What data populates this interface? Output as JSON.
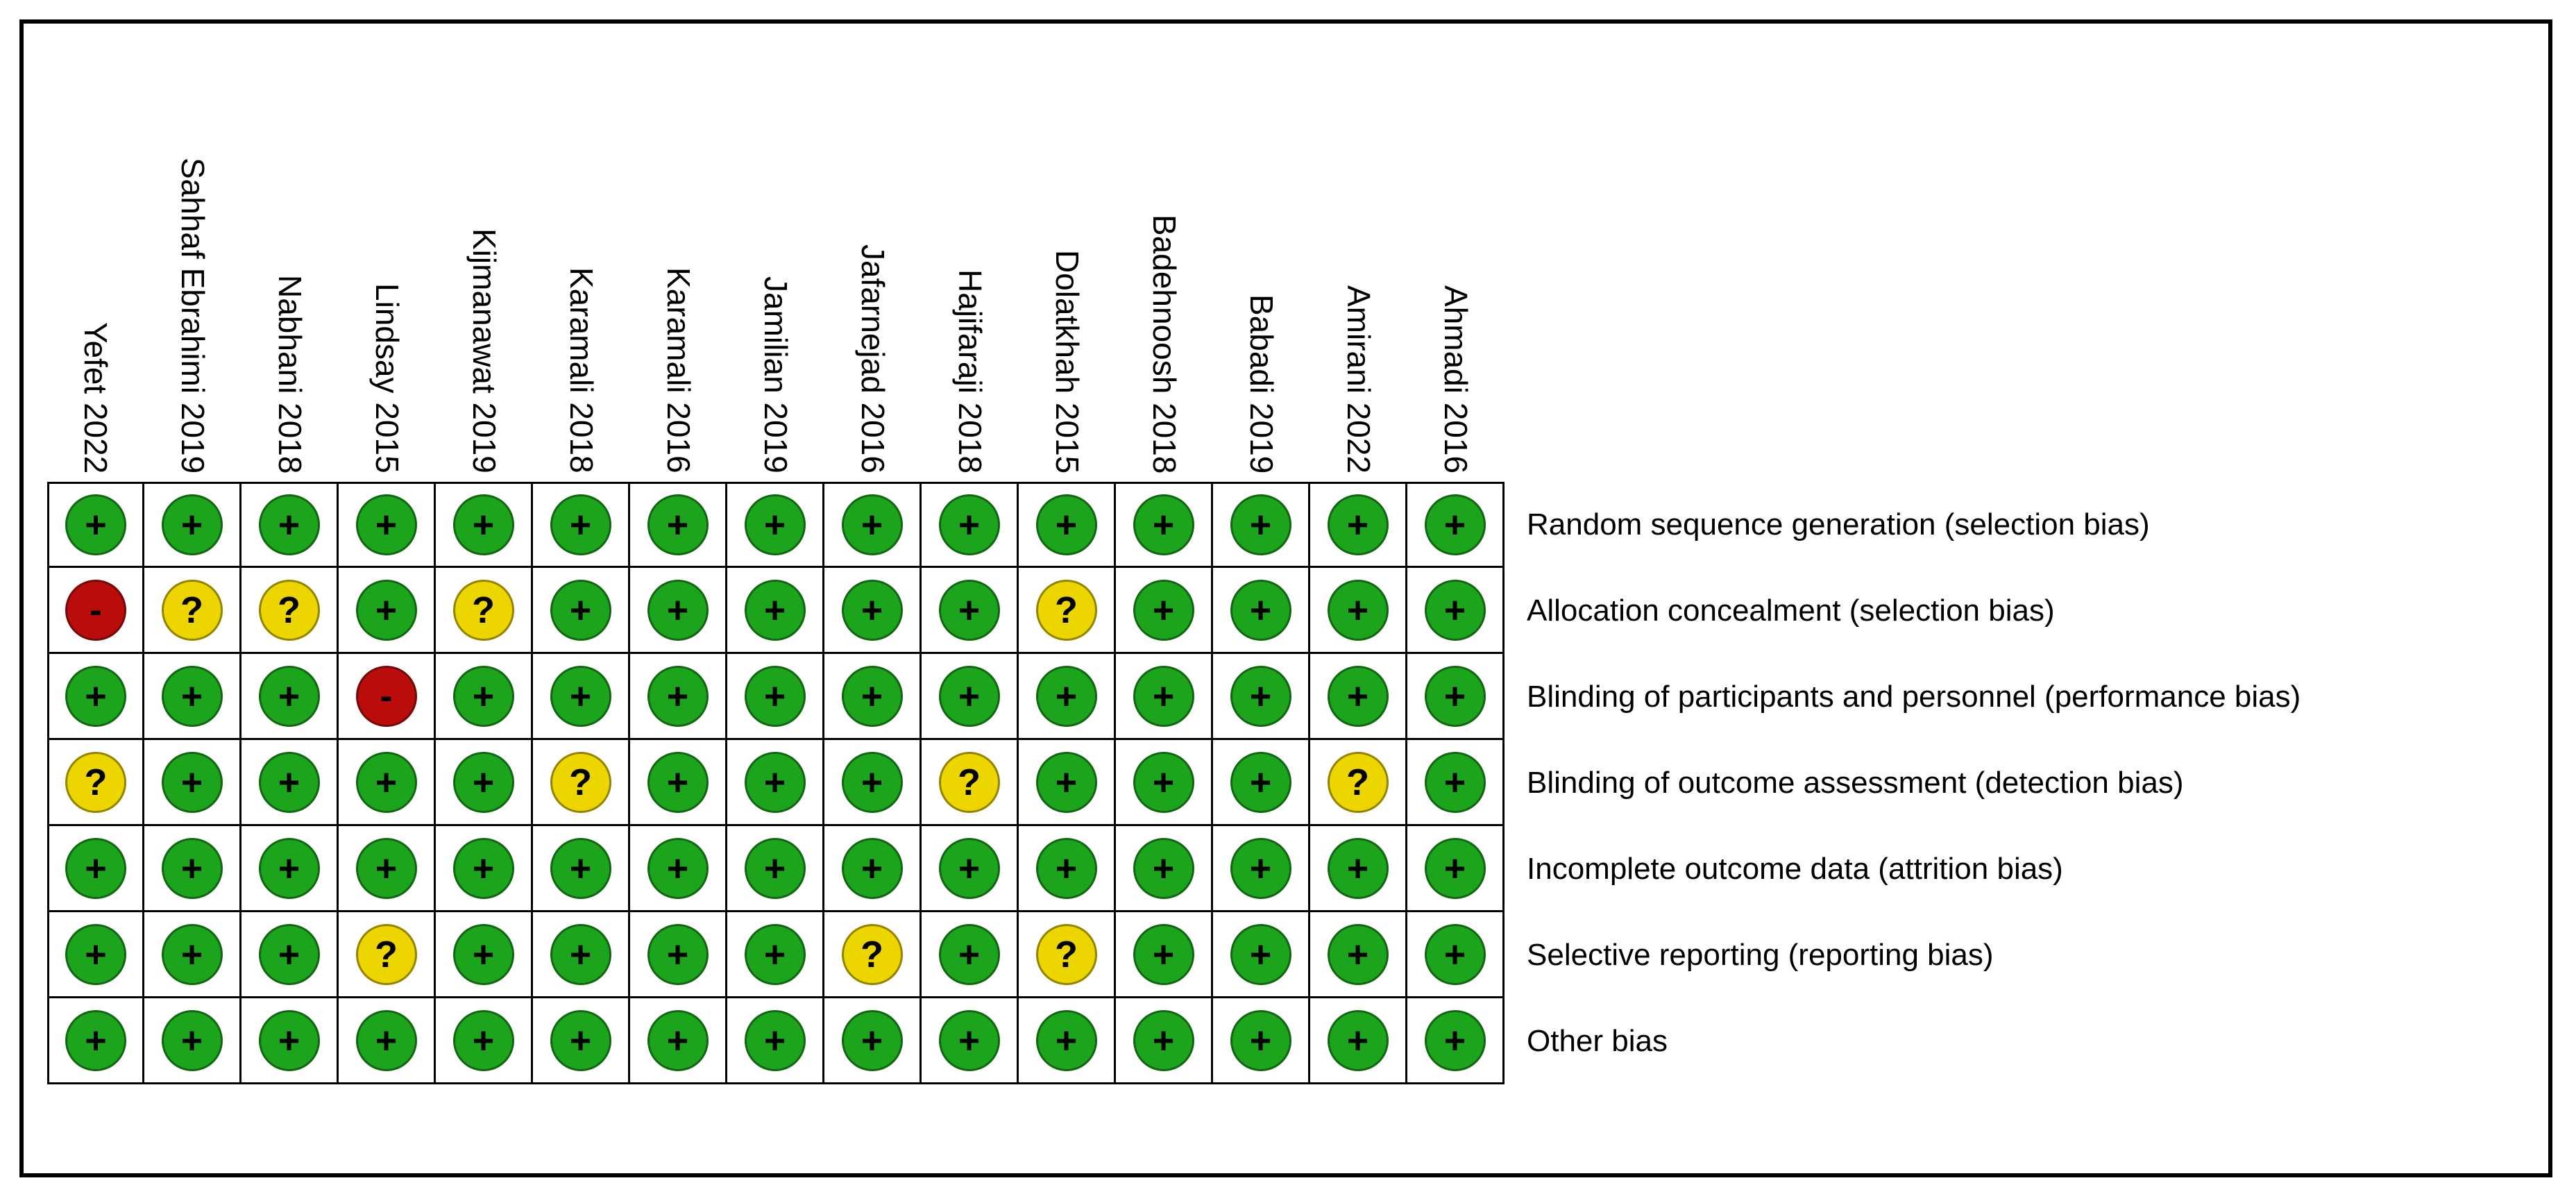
{
  "chart_data": {
    "type": "heatmap",
    "figure_kind": "risk-of-bias-summary",
    "columns_are": "studies",
    "rows_are": "bias_domains",
    "grid": true,
    "studies": [
      "Yefet 2022",
      "Sahhaf Ebrahimi 2019",
      "Nabhani 2018",
      "Lindsay 2015",
      "Kijmanawat 2019",
      "Karamali 2018",
      "Karamali 2016",
      "Jamilian 2019",
      "Jafarnejad 2016",
      "Hajifaraji 2018",
      "Dolatkhah 2015",
      "Badehnoosh 2018",
      "Babadi 2019",
      "Amirani 2022",
      "Ahmadi 2016"
    ],
    "domains": [
      "Random sequence generation (selection bias)",
      "Allocation concealment (selection bias)",
      "Blinding of participants and personnel (performance bias)",
      "Blinding of outcome assessment (detection bias)",
      "Incomplete outcome data (attrition bias)",
      "Selective reporting (reporting bias)",
      "Other bias"
    ],
    "judgements": [
      [
        "low",
        "low",
        "low",
        "low",
        "low",
        "low",
        "low",
        "low",
        "low",
        "low",
        "low",
        "low",
        "low",
        "low",
        "low"
      ],
      [
        "high",
        "unclear",
        "unclear",
        "low",
        "unclear",
        "low",
        "low",
        "low",
        "low",
        "low",
        "unclear",
        "low",
        "low",
        "low",
        "low"
      ],
      [
        "low",
        "low",
        "low",
        "high",
        "low",
        "low",
        "low",
        "low",
        "low",
        "low",
        "low",
        "low",
        "low",
        "low",
        "low"
      ],
      [
        "unclear",
        "low",
        "low",
        "low",
        "low",
        "unclear",
        "low",
        "low",
        "low",
        "unclear",
        "low",
        "low",
        "low",
        "unclear",
        "low"
      ],
      [
        "low",
        "low",
        "low",
        "low",
        "low",
        "low",
        "low",
        "low",
        "low",
        "low",
        "low",
        "low",
        "low",
        "low",
        "low"
      ],
      [
        "low",
        "low",
        "low",
        "unclear",
        "low",
        "low",
        "low",
        "low",
        "unclear",
        "low",
        "unclear",
        "low",
        "low",
        "low",
        "low"
      ],
      [
        "low",
        "low",
        "low",
        "low",
        "low",
        "low",
        "low",
        "low",
        "low",
        "low",
        "low",
        "low",
        "low",
        "low",
        "low"
      ]
    ],
    "legend": {
      "low": {
        "symbol": "+",
        "color": "#1CA51C"
      },
      "unclear": {
        "symbol": "?",
        "color": "#EDD500"
      },
      "high": {
        "symbol": "-",
        "color": "#BB0C0C"
      }
    },
    "symbol_color": "#000000",
    "background_color": "#ffffff",
    "border_color": "#000000"
  }
}
